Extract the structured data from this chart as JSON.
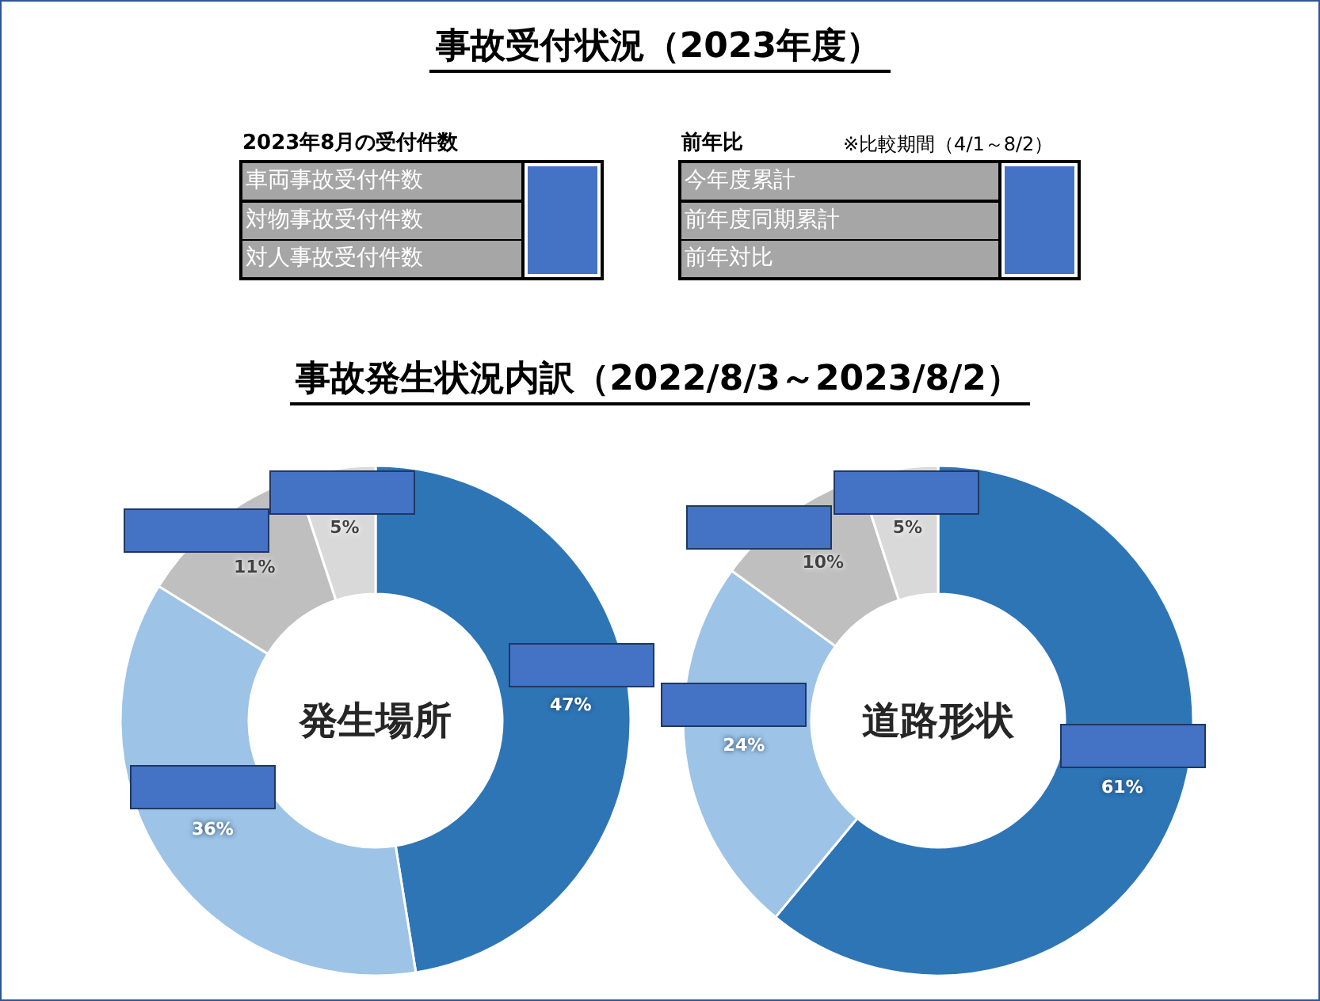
{
  "chart_data": [
    {
      "type": "other",
      "title": "事故受付状況（2023年度）",
      "subtitle": "事故発生状況内訳（2022/8/3～2023/8/2）",
      "annotations": [
        "2023年8月の受付件数",
        "車両事故受付件数",
        "対物事故受付件数",
        "対人事故受付件数",
        "前年比",
        "※比較期間（4/1～8/2）",
        "今年度累計",
        "前年度同期累計",
        "前年対比"
      ]
    },
    {
      "type": "donut",
      "title": "発生場所",
      "categories": [
        null,
        null,
        null,
        null
      ],
      "values": [
        47,
        36,
        11,
        5
      ],
      "colors": [
        "#2e75b6",
        "#9dc3e6",
        "#bfbfbf",
        "#d9d9d9"
      ],
      "value_labels": [
        "47%",
        "36%",
        "11%",
        "5%"
      ]
    },
    {
      "type": "donut",
      "title": "道路形状",
      "categories": [
        null,
        null,
        null,
        null
      ],
      "values": [
        61,
        24,
        10,
        5
      ],
      "colors": [
        "#2e75b6",
        "#9dc3e6",
        "#bfbfbf",
        "#d9d9d9"
      ],
      "value_labels": [
        "61%",
        "24%",
        "10%",
        "5%"
      ]
    }
  ]
}
